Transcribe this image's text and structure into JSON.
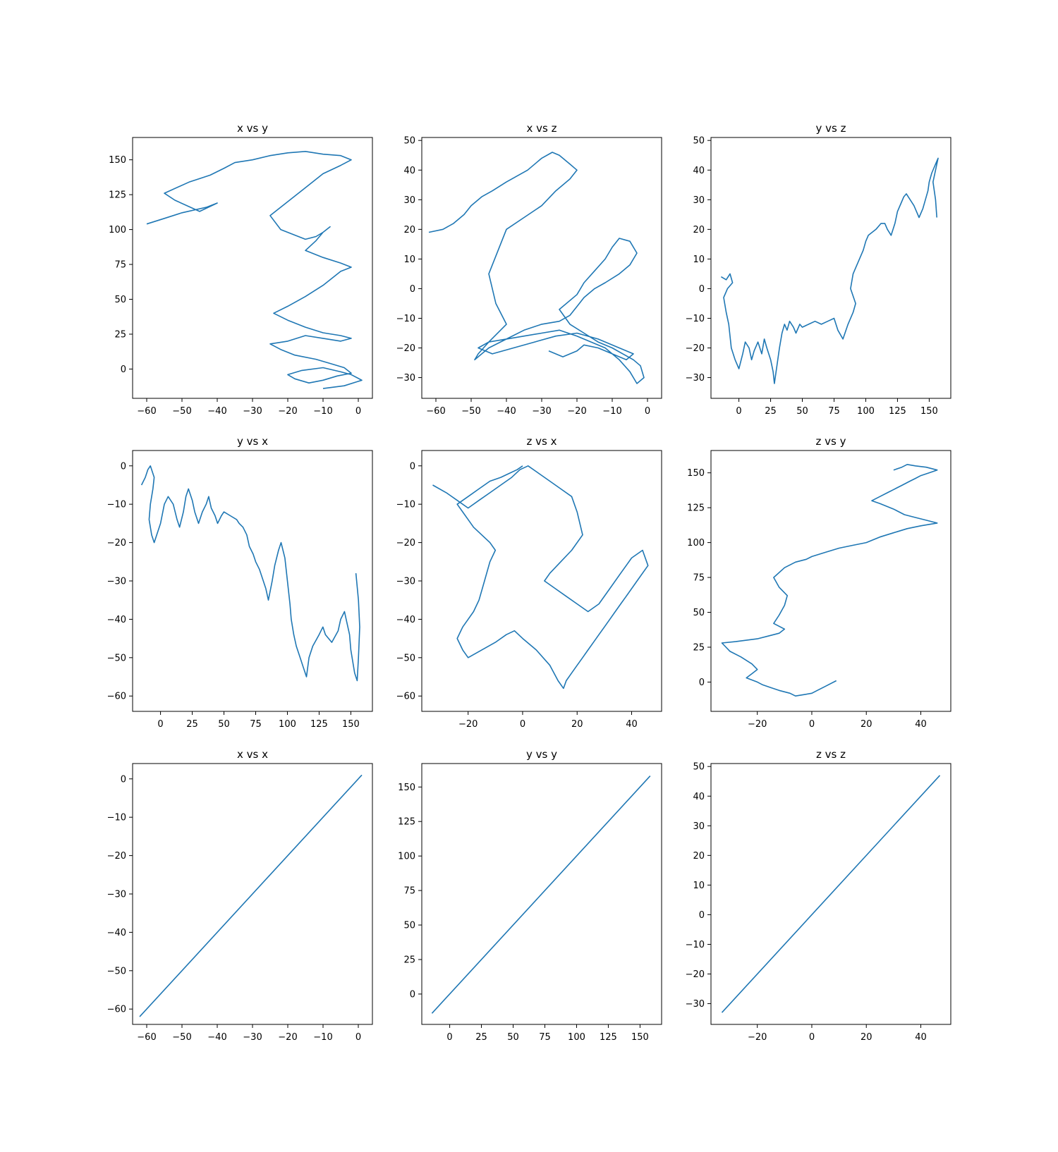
{
  "figure": {
    "background": "#ffffff",
    "line_color": "#1f77b4",
    "axis_color": "#000000"
  },
  "chart_data": [
    {
      "type": "line",
      "title": "x vs y",
      "grid": false,
      "xlim": [
        -64,
        4
      ],
      "ylim": [
        -21,
        166
      ],
      "xticks": [
        -60,
        -50,
        -40,
        -30,
        -20,
        -10,
        0
      ],
      "yticks": [
        0,
        25,
        50,
        75,
        100,
        125,
        150
      ],
      "series": [
        {
          "x": [
            -60,
            -55,
            -50,
            -43,
            -40,
            -45,
            -52,
            -55,
            -48,
            -42,
            -38,
            -35,
            -30,
            -25,
            -20,
            -15,
            -10,
            -5,
            -2,
            -5,
            -10,
            -15,
            -20,
            -25,
            -22,
            -18,
            -15,
            -12,
            -10,
            -8,
            -10,
            -12,
            -15,
            -10,
            -5,
            -2,
            -5,
            -10,
            -15,
            -20,
            -24,
            -20,
            -15,
            -10,
            -5,
            -2,
            -5,
            -10,
            -15,
            -20,
            -25,
            -22,
            -18,
            -12,
            -8,
            -4,
            -2,
            -6,
            -10,
            -14,
            -18,
            -20,
            -16,
            -10,
            -5,
            -2,
            1,
            -4,
            -10
          ],
          "y": [
            104,
            108,
            112,
            116,
            119,
            113,
            121,
            126,
            134,
            139,
            144,
            148,
            150,
            153,
            155,
            156,
            154,
            153,
            150,
            146,
            140,
            130,
            120,
            110,
            100,
            96,
            93,
            95,
            98,
            102,
            98,
            92,
            85,
            80,
            76,
            73,
            70,
            60,
            52,
            45,
            40,
            35,
            30,
            26,
            24,
            22,
            20,
            22,
            24,
            20,
            18,
            14,
            10,
            7,
            4,
            1,
            -3,
            -5,
            -8,
            -10,
            -7,
            -4,
            -1,
            1,
            -2,
            -4,
            -8,
            -12,
            -14
          ]
        }
      ]
    },
    {
      "type": "line",
      "title": "x vs z",
      "grid": false,
      "xlim": [
        -64,
        4
      ],
      "ylim": [
        -37,
        51
      ],
      "xticks": [
        -60,
        -50,
        -40,
        -30,
        -20,
        -10,
        0
      ],
      "yticks": [
        -30,
        -20,
        -10,
        0,
        10,
        20,
        30,
        40,
        50
      ],
      "series": [
        {
          "x": [
            -62,
            -58,
            -55,
            -52,
            -50,
            -47,
            -44,
            -40,
            -37,
            -34,
            -30,
            -27,
            -25,
            -22,
            -20,
            -22,
            -26,
            -30,
            -35,
            -40,
            -42,
            -45,
            -43,
            -40,
            -45,
            -48,
            -49,
            -45,
            -40,
            -35,
            -30,
            -25,
            -22,
            -20,
            -18,
            -15,
            -12,
            -8,
            -5,
            -3,
            -5,
            -8,
            -10,
            -12,
            -15,
            -18,
            -20,
            -25,
            -22,
            -18,
            -14,
            -10,
            -7,
            -4,
            -2,
            -1,
            -3,
            -5,
            -8,
            -12,
            -16,
            -20,
            -25,
            -30,
            -35,
            -40,
            -45,
            -48,
            -44,
            -38,
            -32,
            -26,
            -20,
            -14,
            -8,
            -4,
            -6,
            -10,
            -14,
            -18,
            -20,
            -24,
            -28
          ],
          "y": [
            19,
            20,
            22,
            25,
            28,
            31,
            33,
            36,
            38,
            40,
            44,
            46,
            45,
            42,
            40,
            37,
            33,
            28,
            24,
            20,
            14,
            5,
            -5,
            -12,
            -18,
            -22,
            -24,
            -20,
            -17,
            -14,
            -12,
            -11,
            -9,
            -6,
            -3,
            0,
            2,
            5,
            8,
            12,
            16,
            17,
            14,
            10,
            6,
            2,
            -2,
            -7,
            -12,
            -15,
            -18,
            -20,
            -22,
            -24,
            -26,
            -30,
            -32,
            -28,
            -24,
            -20,
            -18,
            -16,
            -14,
            -15,
            -16,
            -17,
            -18,
            -20,
            -22,
            -20,
            -18,
            -16,
            -15,
            -17,
            -20,
            -22,
            -24,
            -22,
            -20,
            -19,
            -21,
            -23,
            -21
          ]
        }
      ]
    },
    {
      "type": "line",
      "title": "y vs z",
      "grid": false,
      "xlim": [
        -22,
        167
      ],
      "ylim": [
        -37,
        51
      ],
      "xticks": [
        0,
        25,
        50,
        75,
        100,
        125,
        150
      ],
      "yticks": [
        -30,
        -20,
        -10,
        0,
        10,
        20,
        30,
        40,
        50
      ],
      "series": [
        {
          "x": [
            -14,
            -10,
            -7,
            -5,
            -9,
            -12,
            -10,
            -8,
            -7,
            -6,
            -3,
            0,
            3,
            5,
            8,
            10,
            12,
            15,
            18,
            20,
            22,
            25,
            27,
            28,
            30,
            32,
            34,
            36,
            38,
            40,
            43,
            45,
            48,
            50,
            55,
            60,
            65,
            70,
            75,
            78,
            82,
            86,
            90,
            92,
            88,
            90,
            95,
            98,
            100,
            102,
            105,
            108,
            110,
            112,
            115,
            117,
            120,
            123,
            125,
            128,
            130,
            132,
            135,
            138,
            140,
            142,
            145,
            147,
            149,
            150,
            152,
            154,
            155,
            156,
            157,
            156,
            155,
            154,
            153,
            155,
            156
          ],
          "y": [
            4,
            3,
            5,
            2,
            0,
            -3,
            -8,
            -12,
            -16,
            -20,
            -24,
            -27,
            -22,
            -18,
            -20,
            -24,
            -21,
            -18,
            -22,
            -17,
            -20,
            -24,
            -28,
            -32,
            -26,
            -20,
            -15,
            -12,
            -14,
            -11,
            -13,
            -15,
            -12,
            -13,
            -12,
            -11,
            -12,
            -11,
            -10,
            -14,
            -17,
            -12,
            -8,
            -5,
            0,
            5,
            10,
            13,
            16,
            18,
            19,
            20,
            21,
            22,
            22,
            20,
            18,
            22,
            26,
            29,
            31,
            32,
            30,
            28,
            26,
            24,
            27,
            30,
            33,
            36,
            39,
            41,
            42,
            43,
            44,
            42,
            40,
            38,
            36,
            30,
            24
          ]
        }
      ]
    },
    {
      "type": "line",
      "title": "y vs x",
      "grid": false,
      "xlim": [
        -22,
        167
      ],
      "ylim": [
        -64,
        4
      ],
      "xticks": [
        0,
        25,
        50,
        75,
        100,
        125,
        150
      ],
      "yticks": [
        -60,
        -50,
        -40,
        -30,
        -20,
        -10,
        0
      ],
      "series": [
        {
          "x": [
            -15,
            -12,
            -10,
            -8,
            -5,
            -6,
            -8,
            -9,
            -7,
            -5,
            0,
            3,
            6,
            10,
            13,
            15,
            18,
            20,
            22,
            25,
            27,
            30,
            33,
            36,
            38,
            40,
            43,
            45,
            48,
            50,
            55,
            60,
            62,
            65,
            68,
            70,
            73,
            75,
            78,
            80,
            83,
            85,
            88,
            90,
            93,
            95,
            98,
            100,
            102,
            103,
            105,
            107,
            110,
            112,
            115,
            117,
            120,
            125,
            128,
            130,
            135,
            140,
            142,
            145,
            147,
            149,
            150,
            152,
            153,
            155,
            156,
            157,
            156,
            154
          ],
          "y": [
            -5,
            -3,
            -1,
            0,
            -3,
            -6,
            -10,
            -14,
            -18,
            -20,
            -15,
            -10,
            -8,
            -10,
            -14,
            -16,
            -12,
            -8,
            -6,
            -9,
            -12,
            -15,
            -12,
            -10,
            -8,
            -11,
            -13,
            -15,
            -13,
            -12,
            -13,
            -14,
            -15,
            -16,
            -18,
            -21,
            -23,
            -25,
            -27,
            -29,
            -32,
            -35,
            -30,
            -26,
            -22,
            -20,
            -24,
            -30,
            -36,
            -40,
            -44,
            -47,
            -50,
            -52,
            -55,
            -50,
            -47,
            -44,
            -42,
            -44,
            -46,
            -43,
            -40,
            -38,
            -41,
            -44,
            -48,
            -52,
            -54,
            -56,
            -50,
            -42,
            -35,
            -28
          ]
        }
      ]
    },
    {
      "type": "line",
      "title": "z vs x",
      "grid": false,
      "xlim": [
        -37,
        51
      ],
      "ylim": [
        -64,
        4
      ],
      "xticks": [
        -20,
        0,
        20,
        40
      ],
      "yticks": [
        -60,
        -50,
        -40,
        -30,
        -20,
        -10,
        0
      ],
      "series": [
        {
          "x": [
            -33,
            -28,
            -24,
            -20,
            -16,
            -12,
            -8,
            -4,
            -1,
            2,
            6,
            10,
            14,
            18,
            20,
            22,
            18,
            14,
            10,
            8,
            12,
            16,
            20,
            24,
            28,
            32,
            36,
            40,
            44,
            46,
            42,
            38,
            36,
            34,
            32,
            30,
            28,
            26,
            24,
            22,
            20,
            18,
            16,
            15,
            13,
            10,
            5,
            0,
            -3,
            -6,
            -10,
            -15,
            -20,
            -22,
            -24,
            -22,
            -20,
            -18,
            -16,
            -14,
            -12,
            -10,
            -12,
            -15,
            -18,
            -20,
            -22,
            -24,
            -20,
            -16,
            -12,
            -8,
            -5,
            -2,
            0
          ],
          "y": [
            -5,
            -7,
            -9,
            -11,
            -9,
            -7,
            -5,
            -3,
            -1,
            0,
            -2,
            -4,
            -6,
            -8,
            -12,
            -18,
            -22,
            -25,
            -28,
            -30,
            -32,
            -34,
            -36,
            -38,
            -36,
            -32,
            -28,
            -24,
            -22,
            -26,
            -30,
            -34,
            -36,
            -38,
            -40,
            -42,
            -44,
            -46,
            -48,
            -50,
            -52,
            -54,
            -56,
            -58,
            -56,
            -52,
            -48,
            -45,
            -43,
            -44,
            -46,
            -48,
            -50,
            -48,
            -45,
            -42,
            -40,
            -38,
            -35,
            -30,
            -25,
            -22,
            -20,
            -18,
            -16,
            -14,
            -12,
            -10,
            -8,
            -6,
            -4,
            -3,
            -2,
            -1,
            0
          ]
        }
      ]
    },
    {
      "type": "line",
      "title": "z vs y",
      "grid": false,
      "xlim": [
        -37,
        51
      ],
      "ylim": [
        -21,
        166
      ],
      "xticks": [
        -20,
        0,
        20,
        40
      ],
      "yticks": [
        0,
        25,
        50,
        75,
        100,
        125,
        150
      ],
      "series": [
        {
          "x": [
            9,
            5,
            2,
            0,
            -3,
            -6,
            -8,
            -12,
            -15,
            -18,
            -20,
            -24,
            -22,
            -20,
            -22,
            -26,
            -30,
            -33,
            -28,
            -24,
            -20,
            -16,
            -12,
            -10,
            -14,
            -12,
            -10,
            -9,
            -12,
            -14,
            -10,
            -6,
            -2,
            0,
            5,
            10,
            15,
            20,
            25,
            30,
            35,
            40,
            46,
            42,
            38,
            34,
            30,
            25,
            22,
            25,
            28,
            30,
            33,
            36,
            38,
            40,
            43,
            46,
            42,
            38,
            35,
            33,
            30
          ],
          "y": [
            1,
            -3,
            -6,
            -8,
            -9,
            -10,
            -8,
            -6,
            -4,
            -2,
            0,
            3,
            6,
            9,
            13,
            18,
            22,
            28,
            29,
            30,
            31,
            33,
            35,
            38,
            42,
            48,
            55,
            62,
            68,
            75,
            82,
            86,
            88,
            90,
            93,
            96,
            98,
            100,
            104,
            107,
            110,
            112,
            114,
            116,
            118,
            120,
            124,
            128,
            130,
            133,
            136,
            138,
            141,
            144,
            146,
            148,
            150,
            152,
            154,
            155,
            156,
            154,
            152
          ]
        }
      ]
    },
    {
      "type": "line",
      "title": "x vs x",
      "grid": false,
      "xlim": [
        -64,
        4
      ],
      "ylim": [
        -64,
        4
      ],
      "xticks": [
        -60,
        -50,
        -40,
        -30,
        -20,
        -10,
        0
      ],
      "yticks": [
        -60,
        -50,
        -40,
        -30,
        -20,
        -10,
        0
      ],
      "series": [
        {
          "x": [
            -62,
            1
          ],
          "y": [
            -62,
            1
          ]
        }
      ]
    },
    {
      "type": "line",
      "title": "y vs y",
      "grid": false,
      "xlim": [
        -22,
        167
      ],
      "ylim": [
        -22,
        167
      ],
      "xticks": [
        0,
        25,
        50,
        75,
        100,
        125,
        150
      ],
      "yticks": [
        0,
        25,
        50,
        75,
        100,
        125,
        150
      ],
      "series": [
        {
          "x": [
            -14,
            158
          ],
          "y": [
            -14,
            158
          ]
        }
      ]
    },
    {
      "type": "line",
      "title": "z vs z",
      "grid": false,
      "xlim": [
        -37,
        51
      ],
      "ylim": [
        -37,
        51
      ],
      "xticks": [
        -20,
        0,
        20,
        40
      ],
      "yticks": [
        -30,
        -20,
        -10,
        0,
        10,
        20,
        30,
        40,
        50
      ],
      "series": [
        {
          "x": [
            -33,
            47
          ],
          "y": [
            -33,
            47
          ]
        }
      ]
    }
  ]
}
